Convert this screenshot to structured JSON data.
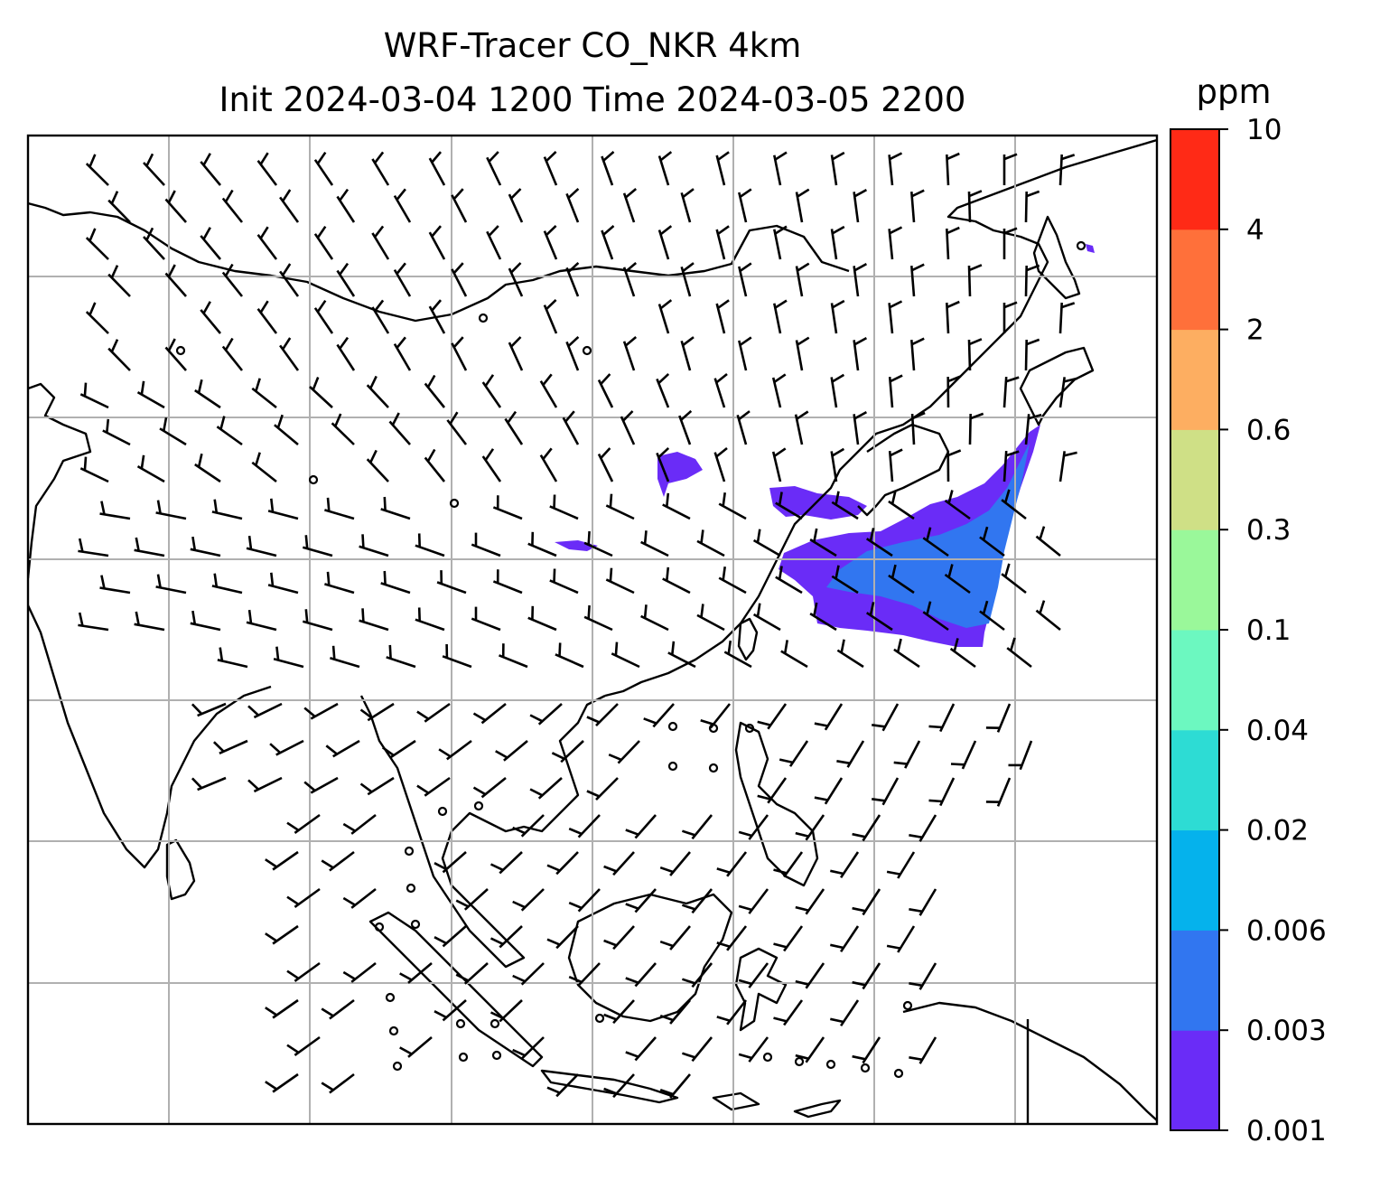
{
  "title": {
    "line1": "WRF-Tracer CO_NKR 4km",
    "line2": "Init 2024-03-04 1200 Time 2024-03-05 2200"
  },
  "colorbar": {
    "unit": "ppm",
    "levels": [
      "0.001",
      "0.003",
      "0.006",
      "0.02",
      "0.04",
      "0.1",
      "0.3",
      "0.6",
      "2",
      "4",
      "10"
    ],
    "colors": [
      "#6a2cf7",
      "#3176f0",
      "#05b2ec",
      "#2ddcd4",
      "#6cf8c0",
      "#9af89a",
      "#cfe086",
      "#fdae61",
      "#ff703a",
      "#ff2a16"
    ]
  },
  "map": {
    "coastline_color": "#000000",
    "grid_color": "#b0b0b0",
    "plume_colors": {
      "low": "#6a2cf7",
      "mid": "#3176f0"
    }
  }
}
